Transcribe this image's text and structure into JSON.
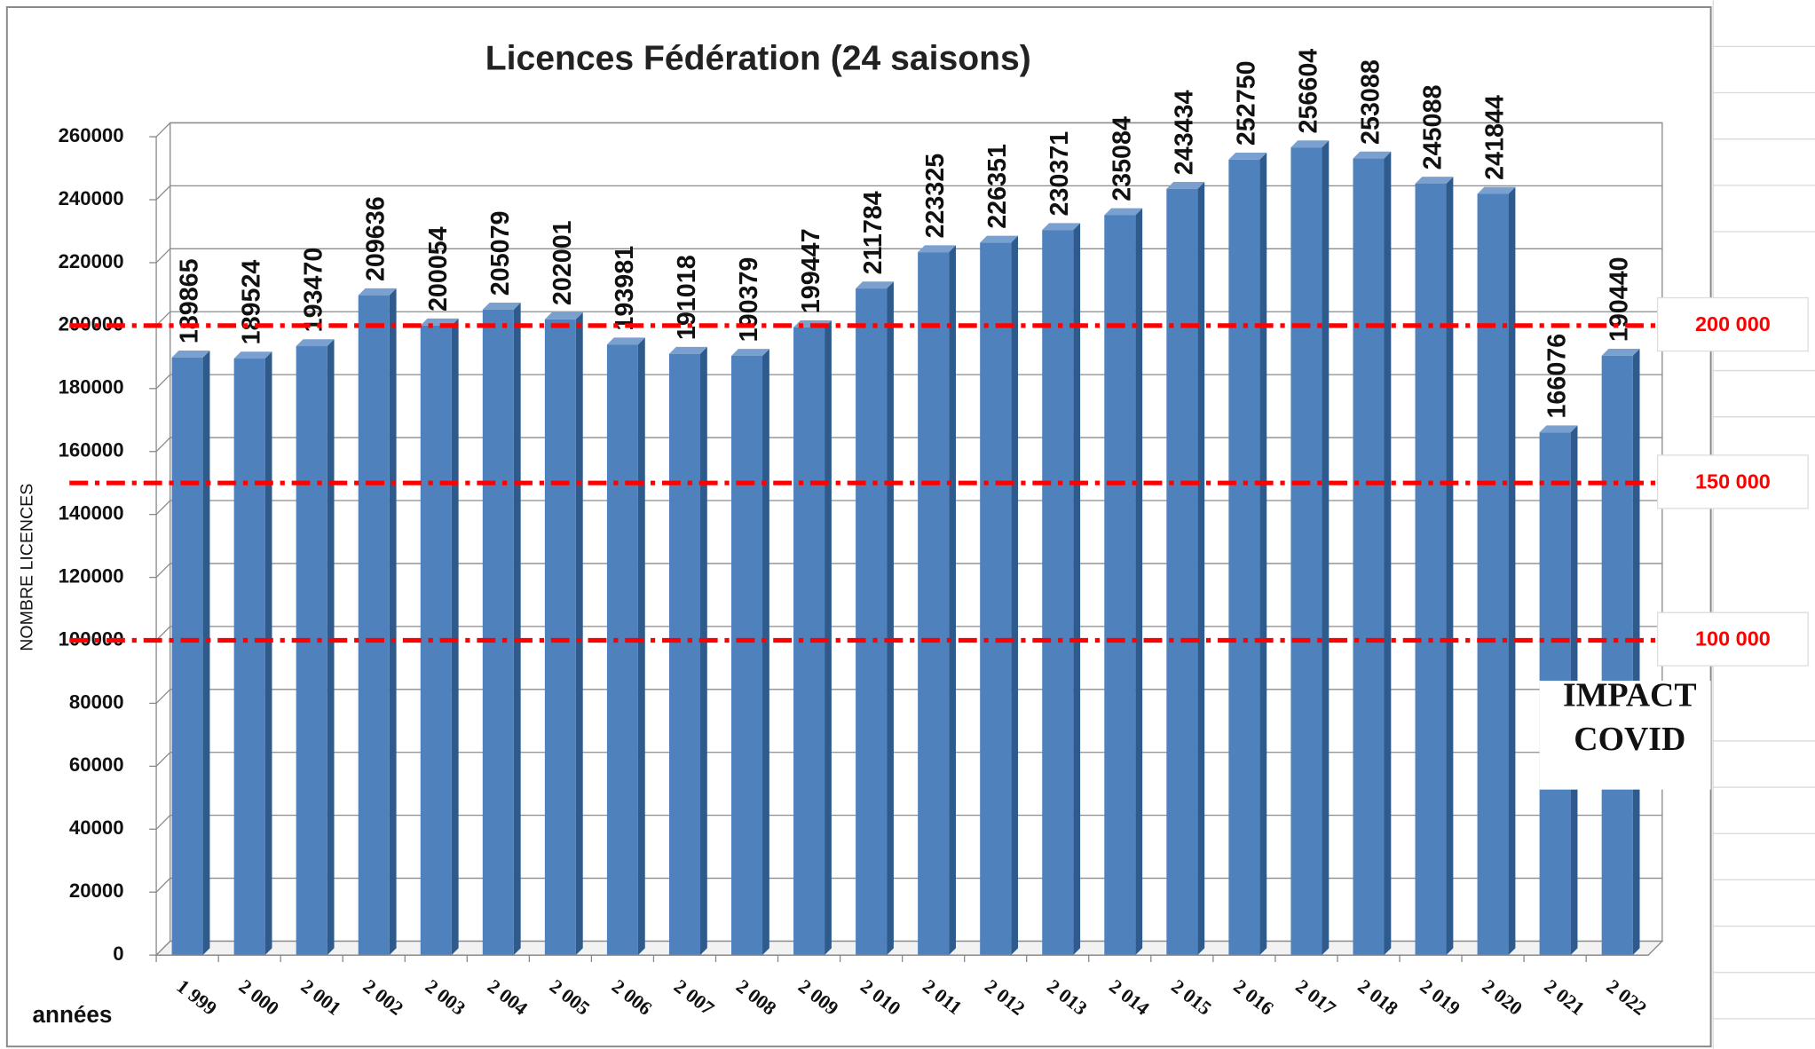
{
  "chart_data": {
    "type": "bar",
    "title": "Licences Fédération  (24 saisons)",
    "y_label": "NOMBRE LICENCES",
    "x_label": "années",
    "categories": [
      "1 999",
      "2 000",
      "2 001",
      "2 002",
      "2 003",
      "2 004",
      "2 005",
      "2 006",
      "2 007",
      "2 008",
      "2 009",
      "2 010",
      "2 011",
      "2 012",
      "2 013",
      "2 014",
      "2 015",
      "2 016",
      "2 017",
      "2 018",
      "2 019",
      "2 020",
      "2 021",
      "2 022"
    ],
    "values": [
      189865,
      189524,
      193470,
      209636,
      200054,
      205079,
      202001,
      193981,
      191018,
      190379,
      199447,
      211784,
      223325,
      226351,
      230371,
      235084,
      243434,
      252750,
      256604,
      253088,
      245088,
      241844,
      166076,
      190440
    ],
    "color": "#4f81bd",
    "ylim": [
      0,
      260000
    ],
    "yticks": [
      0,
      20000,
      40000,
      60000,
      80000,
      100000,
      120000,
      140000,
      160000,
      180000,
      200000,
      220000,
      240000,
      260000
    ],
    "grid": true,
    "reference_lines": [
      {
        "value": 200000,
        "label": "200 000"
      },
      {
        "value": 150000,
        "label": "150 000"
      },
      {
        "value": 100000,
        "label": "100 000"
      }
    ],
    "reference_color": "#ff0000",
    "annotation": "IMPACT COVID"
  }
}
